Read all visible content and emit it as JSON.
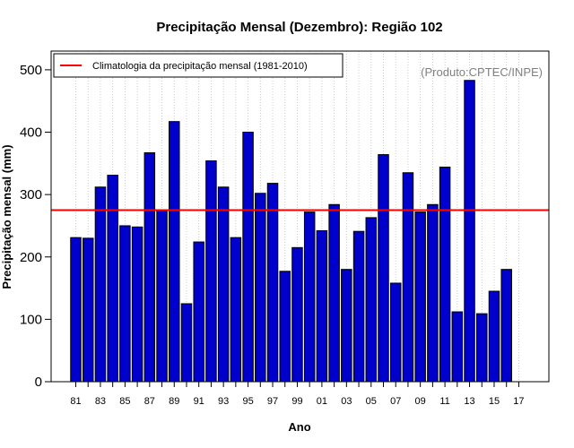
{
  "chart_data": {
    "type": "bar",
    "title": "Precipitação Mensal (Dezembro): Região 102",
    "xlabel": "Ano",
    "ylabel": "Precipitação mensal (mm)",
    "note": "(Produto:CPTEC/INPE)",
    "ylim": [
      0,
      530
    ],
    "yticks": [
      0,
      100,
      200,
      300,
      400,
      500
    ],
    "categories": [
      "81",
      "82",
      "83",
      "84",
      "85",
      "86",
      "87",
      "88",
      "89",
      "90",
      "91",
      "92",
      "93",
      "94",
      "95",
      "96",
      "97",
      "98",
      "99",
      "00",
      "01",
      "02",
      "03",
      "04",
      "05",
      "06",
      "07",
      "08",
      "09",
      "10",
      "11",
      "12",
      "13",
      "14",
      "15",
      "16",
      "17"
    ],
    "xtick_labels": [
      "81",
      "83",
      "85",
      "87",
      "89",
      "91",
      "93",
      "95",
      "97",
      "99",
      "01",
      "03",
      "05",
      "07",
      "09",
      "11",
      "13",
      "15",
      "17"
    ],
    "series": [
      {
        "name": "Precipitação mensal",
        "color": "#0000cc",
        "values": [
          231,
          230,
          312,
          331,
          250,
          248,
          367,
          275,
          417,
          125,
          224,
          354,
          312,
          231,
          400,
          302,
          318,
          177,
          215,
          272,
          242,
          284,
          180,
          241,
          263,
          364,
          158,
          335,
          272,
          284,
          344,
          112,
          483,
          109,
          145,
          180,
          null
        ]
      }
    ],
    "reference_line": {
      "label": "Climatologia da precipitação mensal (1981-2010)",
      "value": 275,
      "color": "#ff0000"
    },
    "grid": "vertical-dotted",
    "legend_position": "top-left"
  }
}
